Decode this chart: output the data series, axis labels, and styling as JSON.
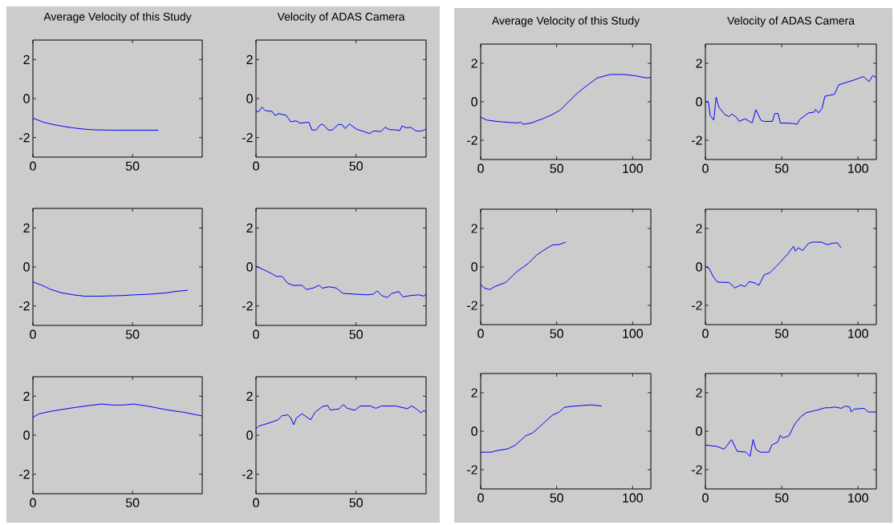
{
  "chart_data": [
    {
      "type": "line",
      "title": "Average Velocity of this Study",
      "xlim": [
        0,
        85
      ],
      "ylim": [
        -3,
        3
      ],
      "xticks": [
        0,
        50
      ],
      "yticks": [
        -2,
        0,
        2
      ],
      "series": [
        {
          "color": "#0000ff",
          "x": [
            0,
            5,
            10,
            15,
            20,
            25,
            30,
            40,
            50,
            63
          ],
          "values": [
            -1.0,
            -1.2,
            -1.33,
            -1.42,
            -1.5,
            -1.56,
            -1.6,
            -1.62,
            -1.62,
            -1.62
          ]
        }
      ]
    },
    {
      "type": "line",
      "title": "Velocity of ADAS Camera",
      "xlim": [
        0,
        85
      ],
      "ylim": [
        -3,
        3
      ],
      "xticks": [
        0,
        50
      ],
      "yticks": [
        -2,
        0,
        2
      ],
      "series": [
        {
          "color": "#0000ff",
          "x": [
            0,
            1.5,
            3,
            4.5,
            8,
            9.5,
            11.6,
            15.2,
            17.3,
            20,
            22,
            26.4,
            27.9,
            30,
            32.2,
            33.6,
            36.1,
            38.2,
            41,
            43,
            44.5,
            46.6,
            50.3,
            54.5,
            56.7,
            58.8,
            62.4,
            64.5,
            66.6,
            70.2,
            71.9,
            73,
            75.1,
            77.3,
            80,
            82.8,
            85
          ],
          "values": [
            -0.66,
            -0.66,
            -0.43,
            -0.61,
            -0.66,
            -0.86,
            -0.77,
            -0.87,
            -1.19,
            -1.14,
            -1.26,
            -1.21,
            -1.61,
            -1.61,
            -1.33,
            -1.33,
            -1.61,
            -1.61,
            -1.33,
            -1.33,
            -1.54,
            -1.3,
            -1.57,
            -1.71,
            -1.8,
            -1.66,
            -1.69,
            -1.47,
            -1.59,
            -1.61,
            -1.64,
            -1.4,
            -1.5,
            -1.47,
            -1.66,
            -1.66,
            -1.57
          ]
        }
      ]
    },
    {
      "type": "line",
      "xlim": [
        0,
        85
      ],
      "ylim": [
        -3,
        3
      ],
      "xticks": [
        0,
        50
      ],
      "yticks": [
        -2,
        0,
        2
      ],
      "series": [
        {
          "color": "#0000ff",
          "x": [
            0,
            4.5,
            8.8,
            14.5,
            20.2,
            25.9,
            33,
            44.3,
            51.4,
            58.5,
            67,
            71.3,
            77.7
          ],
          "values": [
            -0.77,
            -0.94,
            -1.15,
            -1.33,
            -1.43,
            -1.5,
            -1.5,
            -1.47,
            -1.43,
            -1.4,
            -1.33,
            -1.26,
            -1.2
          ]
        }
      ]
    },
    {
      "type": "line",
      "xlim": [
        0,
        85
      ],
      "ylim": [
        -3,
        3
      ],
      "xticks": [
        0,
        50
      ],
      "yticks": [
        -2,
        0,
        2
      ],
      "series": [
        {
          "color": "#0000ff",
          "x": [
            0,
            3.8,
            7.4,
            10.2,
            13,
            15.9,
            18.8,
            23,
            25.1,
            28.7,
            31.5,
            33,
            36.5,
            40,
            43.6,
            50,
            55.7,
            58.5,
            60.6,
            62.8,
            65.6,
            67.8,
            71.3,
            73.4,
            77,
            81.3,
            84,
            85
          ],
          "values": [
            0.03,
            -0.14,
            -0.32,
            -0.49,
            -0.49,
            -0.84,
            -0.95,
            -0.94,
            -1.16,
            -1.08,
            -0.94,
            -1.09,
            -1.02,
            -1.08,
            -1.36,
            -1.4,
            -1.43,
            -1.4,
            -1.23,
            -1.47,
            -1.57,
            -1.36,
            -1.26,
            -1.54,
            -1.47,
            -1.43,
            -1.5,
            -1.36
          ]
        }
      ]
    },
    {
      "type": "line",
      "xlim": [
        0,
        85
      ],
      "ylim": [
        -3,
        3
      ],
      "xticks": [
        0,
        50
      ],
      "yticks": [
        -2,
        0,
        2
      ],
      "series": [
        {
          "color": "#0000ff",
          "x": [
            0,
            3.1,
            8.8,
            14.5,
            21.6,
            28.7,
            34.4,
            40,
            45.7,
            50.7,
            57.1,
            62.8,
            68.5,
            75.6,
            84.8
          ],
          "values": [
            0.92,
            1.1,
            1.22,
            1.32,
            1.43,
            1.53,
            1.6,
            1.55,
            1.55,
            1.6,
            1.5,
            1.39,
            1.28,
            1.18,
            0.99
          ]
        }
      ]
    },
    {
      "type": "line",
      "xlim": [
        0,
        85
      ],
      "ylim": [
        -3,
        3
      ],
      "xticks": [
        0,
        50
      ],
      "yticks": [
        -2,
        0,
        2
      ],
      "series": [
        {
          "color": "#0000ff",
          "x": [
            0,
            1.4,
            6,
            11,
            13,
            15.9,
            17.3,
            18.8,
            20.2,
            23,
            27.3,
            29.5,
            33,
            35.8,
            37.2,
            41.5,
            43.6,
            45.7,
            49.3,
            52.1,
            57.1,
            59.9,
            62.8,
            69.9,
            75.6,
            77.7,
            79.8,
            82.4,
            84,
            85
          ],
          "values": [
            0.33,
            0.47,
            0.61,
            0.79,
            1.0,
            1.04,
            0.9,
            0.54,
            0.89,
            1.1,
            0.79,
            1.18,
            1.46,
            1.53,
            1.29,
            1.35,
            1.57,
            1.38,
            1.28,
            1.5,
            1.5,
            1.38,
            1.5,
            1.5,
            1.36,
            1.5,
            1.38,
            1.15,
            1.28,
            1.15
          ]
        }
      ]
    },
    {
      "type": "line",
      "title": "Average Velocity of this Study",
      "xlim": [
        0,
        112
      ],
      "ylim": [
        -3,
        3
      ],
      "xticks": [
        0,
        50,
        100
      ],
      "yticks": [
        -2,
        0,
        2
      ],
      "series": [
        {
          "color": "#0000ff",
          "x": [
            0,
            4,
            10.6,
            18.1,
            24.8,
            26,
            28,
            33.3,
            40.8,
            46.5,
            52.2,
            57.8,
            63.5,
            69.2,
            76.7,
            85.3,
            93.8,
            101.3,
            108.9,
            112
          ],
          "values": [
            -0.8,
            -0.95,
            -1.02,
            -1.07,
            -1.1,
            -1.05,
            -1.17,
            -1.1,
            -0.88,
            -0.69,
            -0.44,
            0,
            0.44,
            0.8,
            1.24,
            1.42,
            1.42,
            1.36,
            1.24,
            1.27
          ]
        }
      ]
    },
    {
      "type": "line",
      "title": "Velocity of ADAS Camera",
      "xlim": [
        0,
        112
      ],
      "ylim": [
        -3,
        3
      ],
      "xticks": [
        0,
        50,
        100
      ],
      "yticks": [
        -2,
        0,
        2
      ],
      "series": [
        {
          "color": "#0000ff",
          "x": [
            0,
            1.9,
            3.2,
            5.5,
            7,
            8.9,
            12.7,
            15.5,
            17.4,
            20.2,
            22.1,
            25.9,
            30.6,
            33.1,
            36.3,
            38.2,
            43.9,
            45.4,
            47.6,
            49.1,
            57.1,
            60,
            61.8,
            67.5,
            71.3,
            72.2,
            74.1,
            76.4,
            78.3,
            84.5,
            87.3,
            93,
            98.7,
            103.4,
            107.2,
            109.6,
            112
          ],
          "values": [
            0,
            0,
            -0.73,
            -0.95,
            0.25,
            -0.29,
            -0.66,
            -0.77,
            -0.63,
            -0.8,
            -1.02,
            -0.88,
            -1.1,
            -0.41,
            -0.95,
            -1.02,
            -1.02,
            -0.61,
            -0.61,
            -1.1,
            -1.12,
            -1.17,
            -0.92,
            -0.58,
            -0.54,
            -0.39,
            -0.58,
            -0.34,
            0.29,
            0.39,
            0.88,
            1.02,
            1.17,
            1.31,
            1.05,
            1.36,
            1.27
          ]
        }
      ]
    },
    {
      "type": "line",
      "xlim": [
        0,
        112
      ],
      "ylim": [
        -3,
        3
      ],
      "xticks": [
        0,
        50,
        100
      ],
      "yticks": [
        -2,
        0,
        2
      ],
      "series": [
        {
          "color": "#0000ff",
          "x": [
            0,
            2.1,
            5.9,
            9.6,
            16.3,
            23.8,
            31.4,
            37,
            42.7,
            47.4,
            51.2,
            56
          ],
          "values": [
            -0.91,
            -1.09,
            -1.18,
            -1.01,
            -0.81,
            -0.25,
            0.19,
            0.63,
            0.93,
            1.15,
            1.15,
            1.29
          ]
        }
      ]
    },
    {
      "type": "line",
      "xlim": [
        0,
        112
      ],
      "ylim": [
        -3,
        3
      ],
      "xticks": [
        0,
        50,
        100
      ],
      "yticks": [
        -2,
        0,
        2
      ],
      "series": [
        {
          "color": "#0000ff",
          "x": [
            0,
            2.3,
            5.1,
            7.9,
            15.5,
            19.3,
            23.1,
            25.9,
            28.7,
            32.5,
            35,
            38.6,
            42,
            47.6,
            54.3,
            57.7,
            59,
            60.9,
            63.7,
            67.5,
            70.3,
            76,
            79.8,
            82.6,
            86.4,
            88.8
          ],
          "values": [
            0,
            -0.06,
            -0.5,
            -0.79,
            -0.81,
            -1.09,
            -0.94,
            -1.03,
            -0.76,
            -0.84,
            -0.96,
            -0.4,
            -0.32,
            0.12,
            0.71,
            1.07,
            0.82,
            1.0,
            0.85,
            1.22,
            1.29,
            1.29,
            1.15,
            1.22,
            1.26,
            1.0
          ]
        }
      ]
    },
    {
      "type": "line",
      "xlim": [
        0,
        112
      ],
      "ylim": [
        -3,
        3
      ],
      "xticks": [
        0,
        50,
        100
      ],
      "yticks": [
        -2,
        0,
        2
      ],
      "series": [
        {
          "color": "#0000ff",
          "x": [
            0,
            6.8,
            10.6,
            18.1,
            22.9,
            29.5,
            34.2,
            40.8,
            47.4,
            51.2,
            55,
            59.7,
            67.3,
            72.9,
            79.6
          ],
          "values": [
            -1.09,
            -1.09,
            -1.01,
            -0.91,
            -0.72,
            -0.24,
            -0.09,
            0.38,
            0.85,
            0.97,
            1.24,
            1.29,
            1.34,
            1.37,
            1.31
          ]
        }
      ]
    },
    {
      "type": "line",
      "xlim": [
        0,
        112
      ],
      "ylim": [
        -3,
        3
      ],
      "xticks": [
        0,
        50,
        100
      ],
      "yticks": [
        -2,
        0,
        2
      ],
      "series": [
        {
          "color": "#0000ff",
          "x": [
            0,
            7.6,
            12.3,
            17.1,
            20.8,
            26.5,
            29.3,
            31.2,
            33.1,
            36,
            41.6,
            43.5,
            47.3,
            49.1,
            50.7,
            54.8,
            58.6,
            62.4,
            66.2,
            71.8,
            78.5,
            81.3,
            85.1,
            88.9,
            91.7,
            94.5,
            95.5,
            97.4,
            104,
            106.8,
            112
          ],
          "values": [
            -0.72,
            -0.79,
            -0.94,
            -0.43,
            -1.04,
            -1.09,
            -1.31,
            -0.43,
            -0.94,
            -1.09,
            -1.09,
            -0.72,
            -0.57,
            -0.21,
            -0.35,
            -0.24,
            0.38,
            0.75,
            0.97,
            1.07,
            1.22,
            1.22,
            1.26,
            1.19,
            1.31,
            1.26,
            1.01,
            1.15,
            1.19,
            1.0,
            1.0
          ]
        }
      ]
    }
  ]
}
